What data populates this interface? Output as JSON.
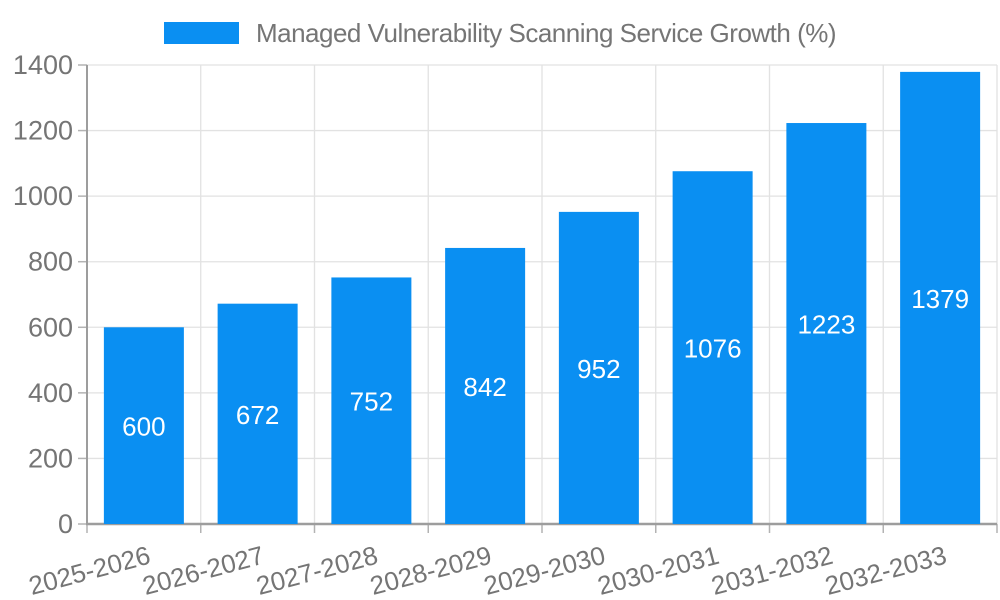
{
  "legend": {
    "label": "Managed Vulnerability Scanning Service Growth (%)"
  },
  "chart_data": {
    "type": "bar",
    "title": "Managed Vulnerability Scanning Service Growth (%)",
    "categories": [
      "2025-2026",
      "2026-2027",
      "2027-2028",
      "2028-2029",
      "2029-2030",
      "2030-2031",
      "2031-2032",
      "2032-2033"
    ],
    "values": [
      600,
      672,
      752,
      842,
      952,
      1076,
      1223,
      1379
    ],
    "xlabel": "",
    "ylabel": "",
    "ylim": [
      0,
      1400
    ],
    "yticks": [
      0,
      200,
      400,
      600,
      800,
      1000,
      1200,
      1400
    ],
    "grid": true,
    "legend_position": "top",
    "x_tick_rotation": -15,
    "bar_color": "#0a8ff2",
    "value_label_color": "#ffffff",
    "grid_color": "#e2e2e2",
    "axis_color": "#9d9d9d",
    "tick_color": "#b3b3b3",
    "text_color": "#757575"
  }
}
